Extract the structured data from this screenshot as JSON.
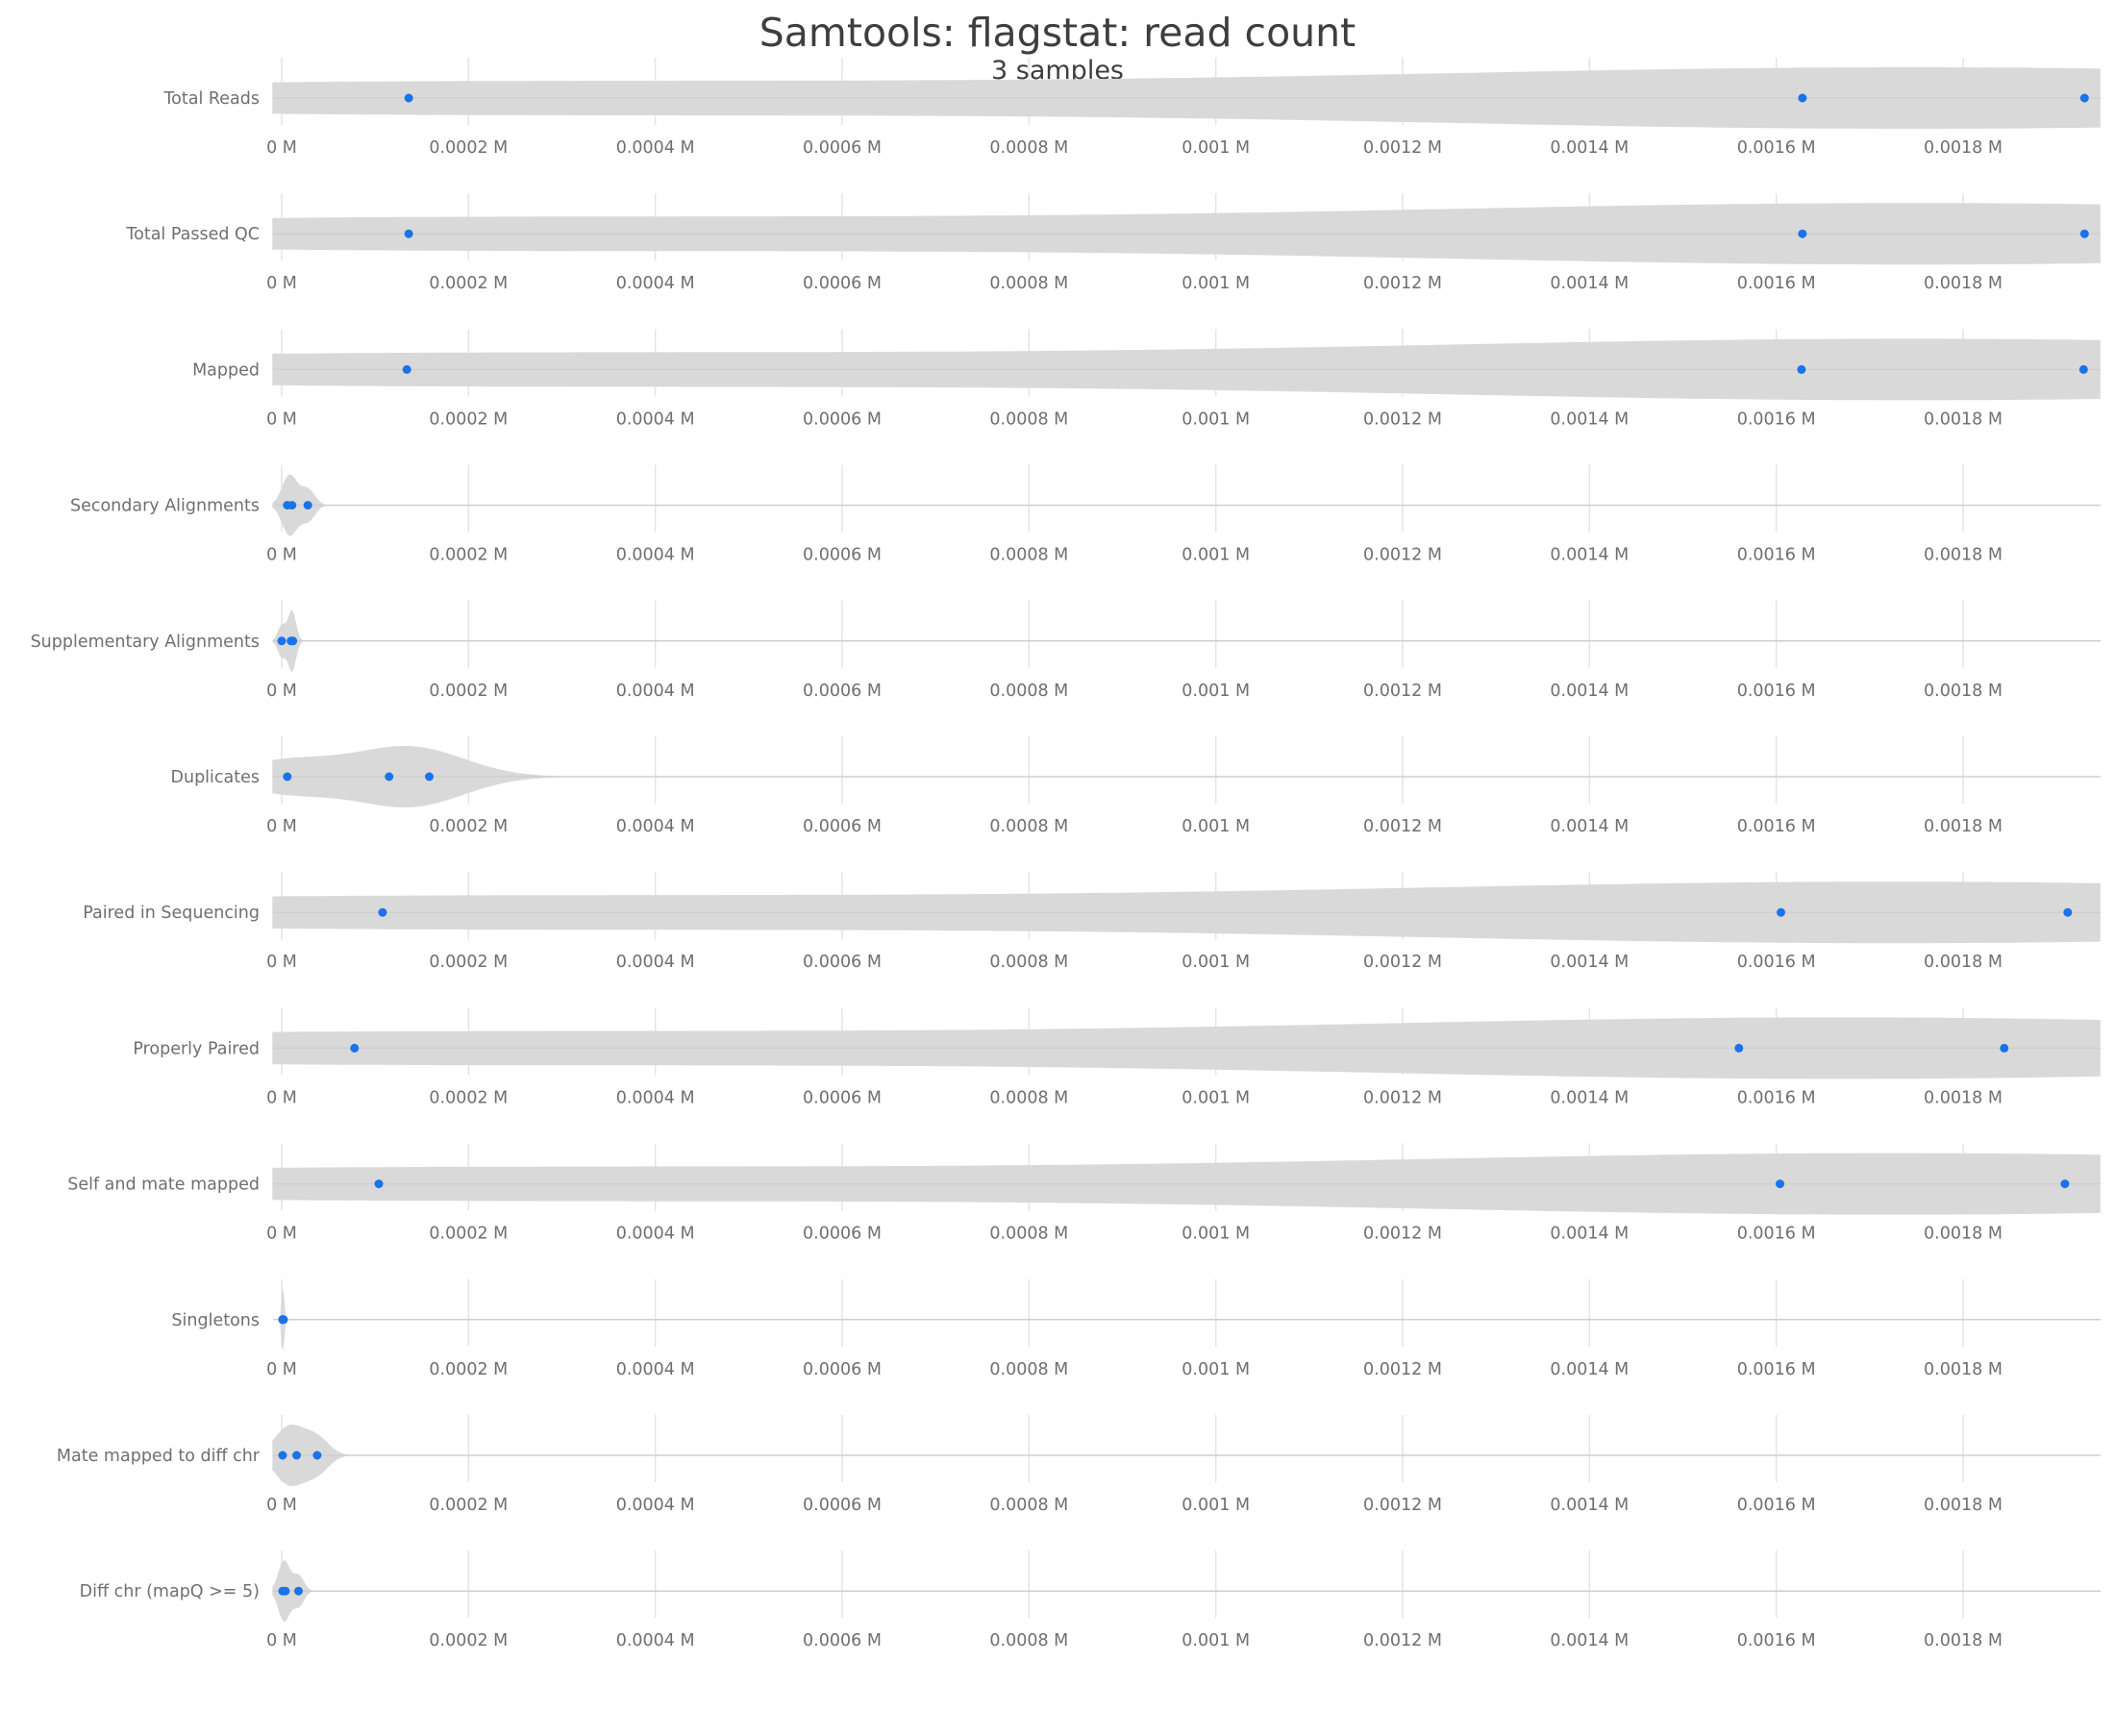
{
  "chart_data": {
    "type": "violin",
    "title": "Samtools: flagstat: read count",
    "subtitle": "3 samples",
    "x_tick_labels": [
      "0 M",
      "0.0002 M",
      "0.0004 M",
      "0.0006 M",
      "0.0008 M",
      "0.001 M",
      "0.0012 M",
      "0.0014 M",
      "0.0016 M",
      "0.0018 M"
    ],
    "x_ticks": [
      0,
      0.0002,
      0.0004,
      0.0006,
      0.0008,
      0.001,
      0.0012,
      0.0014,
      0.0016,
      0.0018
    ],
    "xlim": [
      -1e-05,
      0.001947
    ],
    "grid": true,
    "marker_color": "#1a73e8",
    "violin_color": "#d9d9d9",
    "rows": [
      {
        "name": "Total Reads",
        "values": [
          0.000136,
          0.001628,
          0.00193
        ]
      },
      {
        "name": "Total Passed QC",
        "values": [
          0.000136,
          0.001628,
          0.00193
        ]
      },
      {
        "name": "Mapped",
        "values": [
          0.000134,
          0.001627,
          0.001929
        ]
      },
      {
        "name": "Secondary Alignments",
        "values": [
          6e-06,
          1.1e-05,
          2.8e-05
        ]
      },
      {
        "name": "Supplementary Alignments",
        "values": [
          0.0,
          1e-05,
          1.2e-05
        ]
      },
      {
        "name": "Duplicates",
        "values": [
          6e-06,
          0.000115,
          0.000158
        ]
      },
      {
        "name": "Paired in Sequencing",
        "values": [
          0.000108,
          0.001605,
          0.001912
        ]
      },
      {
        "name": "Properly Paired",
        "values": [
          7.8e-05,
          0.00156,
          0.001844
        ]
      },
      {
        "name": "Self and mate mapped",
        "values": [
          0.000104,
          0.001604,
          0.001909
        ]
      },
      {
        "name": "Singletons",
        "values": [
          1e-06,
          1e-06,
          2e-06
        ]
      },
      {
        "name": "Mate mapped to diff chr",
        "values": [
          1e-06,
          1.6e-05,
          3.8e-05
        ]
      },
      {
        "name": "Diff chr (mapQ >= 5)",
        "values": [
          1e-06,
          4e-06,
          1.8e-05
        ]
      }
    ]
  }
}
